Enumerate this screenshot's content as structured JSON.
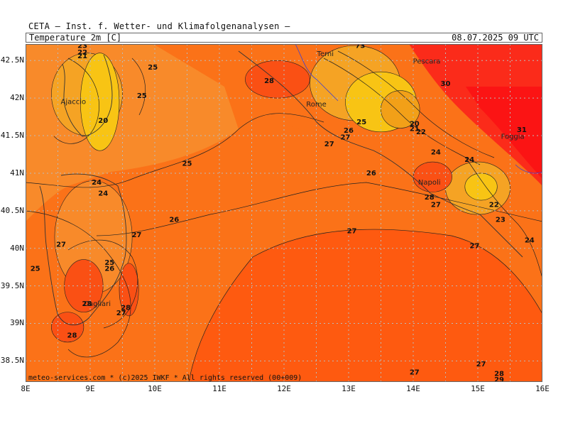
{
  "header": {
    "org": "CETA — Inst. f. Wetter- und Klimafolgenanalysen —",
    "param": "Temperature 2m [C]",
    "datetime": "08.07.2025 09 UTC"
  },
  "credit": "meteo-services.com * (c)2025 IWKF * All rights reserved (00+009)",
  "colors": {
    "t20": "#f2a018",
    "t22": "#f8c414",
    "t24": "#f5a324",
    "t25": "#f88a2a",
    "t26": "#fb7218",
    "t27": "#fe5a10",
    "t28": "#fa5014",
    "t30": "#fb2b1a",
    "t31": "#fb1414"
  },
  "lat_labels": [
    "42.5N",
    "42N",
    "41.5N",
    "41N",
    "40.5N",
    "40N",
    "39.5N",
    "39N",
    "38.5N"
  ],
  "lon_labels": [
    "8E",
    "9E",
    "10E",
    "11E",
    "12E",
    "13E",
    "14E",
    "15E",
    "16E"
  ],
  "cities": [
    {
      "name": "Ajaccio",
      "lon": 8.74,
      "lat": 41.92
    },
    {
      "name": "Cagliari",
      "lon": 9.11,
      "lat": 39.23
    },
    {
      "name": "Rome",
      "lon": 12.5,
      "lat": 41.89
    },
    {
      "name": "Terni",
      "lon": 12.64,
      "lat": 42.56
    },
    {
      "name": "Pescara",
      "lon": 14.21,
      "lat": 42.46
    },
    {
      "name": "Foggia",
      "lon": 15.54,
      "lat": 41.46
    },
    {
      "name": "Napoli",
      "lon": 14.25,
      "lat": 40.85
    }
  ],
  "contour_labels": [
    {
      "t": "23",
      "lon": 8.88,
      "lat": 42.67
    },
    {
      "t": "22",
      "lon": 8.88,
      "lat": 42.58
    },
    {
      "t": "21",
      "lon": 8.88,
      "lat": 42.53
    },
    {
      "t": "25",
      "lon": 9.97,
      "lat": 42.38
    },
    {
      "t": "25",
      "lon": 9.8,
      "lat": 42.0
    },
    {
      "t": "20",
      "lon": 9.2,
      "lat": 41.67
    },
    {
      "t": "28",
      "lon": 11.77,
      "lat": 42.2
    },
    {
      "t": "73",
      "lon": 13.18,
      "lat": 42.67
    },
    {
      "t": "30",
      "lon": 14.5,
      "lat": 42.16
    },
    {
      "t": "31",
      "lon": 15.68,
      "lat": 41.55
    },
    {
      "t": "25",
      "lon": 13.2,
      "lat": 41.65
    },
    {
      "t": "26",
      "lon": 13.0,
      "lat": 41.54
    },
    {
      "t": "27",
      "lon": 12.95,
      "lat": 41.45
    },
    {
      "t": "27",
      "lon": 12.7,
      "lat": 41.36
    },
    {
      "t": "20",
      "lon": 14.02,
      "lat": 41.63
    },
    {
      "t": "21",
      "lon": 14.02,
      "lat": 41.56
    },
    {
      "t": "22",
      "lon": 14.12,
      "lat": 41.52
    },
    {
      "t": "24",
      "lon": 14.35,
      "lat": 41.25
    },
    {
      "t": "24",
      "lon": 14.87,
      "lat": 41.15
    },
    {
      "t": "25",
      "lon": 10.5,
      "lat": 41.1
    },
    {
      "t": "26",
      "lon": 13.35,
      "lat": 40.97
    },
    {
      "t": "28",
      "lon": 14.25,
      "lat": 40.65
    },
    {
      "t": "27",
      "lon": 14.35,
      "lat": 40.55
    },
    {
      "t": "24",
      "lon": 9.1,
      "lat": 40.85
    },
    {
      "t": "24",
      "lon": 9.2,
      "lat": 40.7
    },
    {
      "t": "22",
      "lon": 15.25,
      "lat": 40.55
    },
    {
      "t": "23",
      "lon": 15.35,
      "lat": 40.35
    },
    {
      "t": "26",
      "lon": 10.3,
      "lat": 40.35
    },
    {
      "t": "27",
      "lon": 9.72,
      "lat": 40.15
    },
    {
      "t": "27",
      "lon": 13.05,
      "lat": 40.2
    },
    {
      "t": "27",
      "lon": 8.55,
      "lat": 40.02
    },
    {
      "t": "27",
      "lon": 14.95,
      "lat": 40.0
    },
    {
      "t": "24",
      "lon": 15.8,
      "lat": 40.08
    },
    {
      "t": "25",
      "lon": 8.15,
      "lat": 39.7
    },
    {
      "t": "25",
      "lon": 9.3,
      "lat": 39.78
    },
    {
      "t": "26",
      "lon": 9.3,
      "lat": 39.7
    },
    {
      "t": "28",
      "lon": 8.95,
      "lat": 39.23
    },
    {
      "t": "28",
      "lon": 9.55,
      "lat": 39.18
    },
    {
      "t": "27",
      "lon": 9.48,
      "lat": 39.11
    },
    {
      "t": "28",
      "lon": 8.72,
      "lat": 38.81
    },
    {
      "t": "27",
      "lon": 14.02,
      "lat": 38.32
    },
    {
      "t": "27",
      "lon": 15.05,
      "lat": 38.43
    },
    {
      "t": "28",
      "lon": 15.33,
      "lat": 38.3
    },
    {
      "t": "29",
      "lon": 15.33,
      "lat": 38.22
    }
  ],
  "blobs": [
    {
      "lon": 8.95,
      "lat": 42.05,
      "rx": 0.55,
      "ry": 0.55,
      "c": "t24"
    },
    {
      "lon": 9.15,
      "lat": 41.95,
      "rx": 0.3,
      "ry": 0.65,
      "c": "t22"
    },
    {
      "lon": 9.05,
      "lat": 40.15,
      "rx": 0.6,
      "ry": 0.75,
      "c": "t25"
    },
    {
      "lon": 8.9,
      "lat": 39.5,
      "rx": 0.3,
      "ry": 0.35,
      "c": "t28"
    },
    {
      "lon": 9.6,
      "lat": 39.45,
      "rx": 0.15,
      "ry": 0.35,
      "c": "t28"
    },
    {
      "lon": 8.65,
      "lat": 38.95,
      "rx": 0.25,
      "ry": 0.2,
      "c": "t28"
    },
    {
      "lon": 13.1,
      "lat": 42.2,
      "rx": 0.7,
      "ry": 0.5,
      "c": "t24"
    },
    {
      "lon": 13.5,
      "lat": 41.95,
      "rx": 0.55,
      "ry": 0.4,
      "c": "t22"
    },
    {
      "lon": 13.8,
      "lat": 41.85,
      "rx": 0.3,
      "ry": 0.25,
      "c": "t20"
    },
    {
      "lon": 15.0,
      "lat": 40.8,
      "rx": 0.5,
      "ry": 0.35,
      "c": "t24"
    },
    {
      "lon": 15.05,
      "lat": 40.82,
      "rx": 0.25,
      "ry": 0.18,
      "c": "t22"
    },
    {
      "lon": 14.3,
      "lat": 40.95,
      "rx": 0.3,
      "ry": 0.2,
      "c": "t28"
    },
    {
      "lon": 11.9,
      "lat": 42.25,
      "rx": 0.5,
      "ry": 0.25,
      "c": "t28"
    }
  ]
}
